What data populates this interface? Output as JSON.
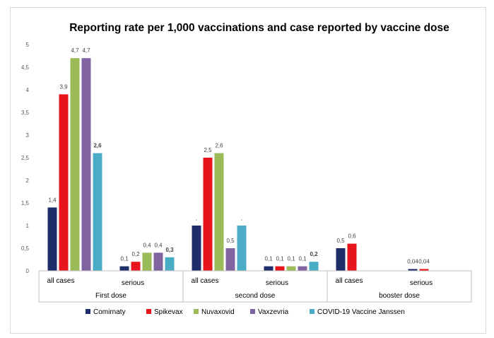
{
  "chart_data": {
    "type": "bar",
    "title": "Reporting rate per 1,000 vaccinations and case reported by vaccine dose",
    "ylim": [
      0,
      5
    ],
    "yticks": [
      "0",
      "0,5",
      "1",
      "1,5",
      "2",
      "2,5",
      "3",
      "3,5",
      "4",
      "4,5",
      "5"
    ],
    "groups": [
      {
        "label": "First dose",
        "subcategories": [
          "all cases",
          "serious"
        ]
      },
      {
        "label": "second dose",
        "subcategories": [
          "all cases",
          "serious"
        ]
      },
      {
        "label": "booster dose",
        "subcategories": [
          "all cases",
          "serious"
        ]
      }
    ],
    "series": [
      {
        "name": "Comirnaty",
        "color": "#1f2d6b",
        "values": [
          1.4,
          0.1,
          1.0,
          0.1,
          0.5,
          0.04
        ],
        "labels": [
          "1,4",
          "0,1",
          ",",
          "0,1",
          "0,5",
          "0,04"
        ]
      },
      {
        "name": "Spikevax",
        "color": "#e8141b",
        "values": [
          3.9,
          0.2,
          2.5,
          0.1,
          0.6,
          0.04
        ],
        "labels": [
          "3,9",
          "0,2",
          "2,5",
          "0,1",
          "0,6",
          "0,04"
        ]
      },
      {
        "name": "Nuvaxovid",
        "color": "#9bbb59",
        "values": [
          4.7,
          0.4,
          2.6,
          0.1,
          null,
          null
        ],
        "labels": [
          "4,7",
          "0,4",
          "2,6",
          "0,1",
          "",
          ""
        ]
      },
      {
        "name": "Vaxzevria",
        "color": "#8064a2",
        "values": [
          4.7,
          0.4,
          0.5,
          0.1,
          null,
          null
        ],
        "labels": [
          "4,7",
          "0,4",
          "0,5",
          "0,1",
          "",
          ""
        ]
      },
      {
        "name": "COVID-19 Vaccine Janssen",
        "color": "#4bacc6",
        "values": [
          2.6,
          0.3,
          1.0,
          0.2,
          null,
          null
        ],
        "labels": [
          "2,6",
          "0,3",
          ",",
          "0,2",
          "",
          ""
        ]
      }
    ],
    "legend": {
      "position": "bottom"
    }
  }
}
